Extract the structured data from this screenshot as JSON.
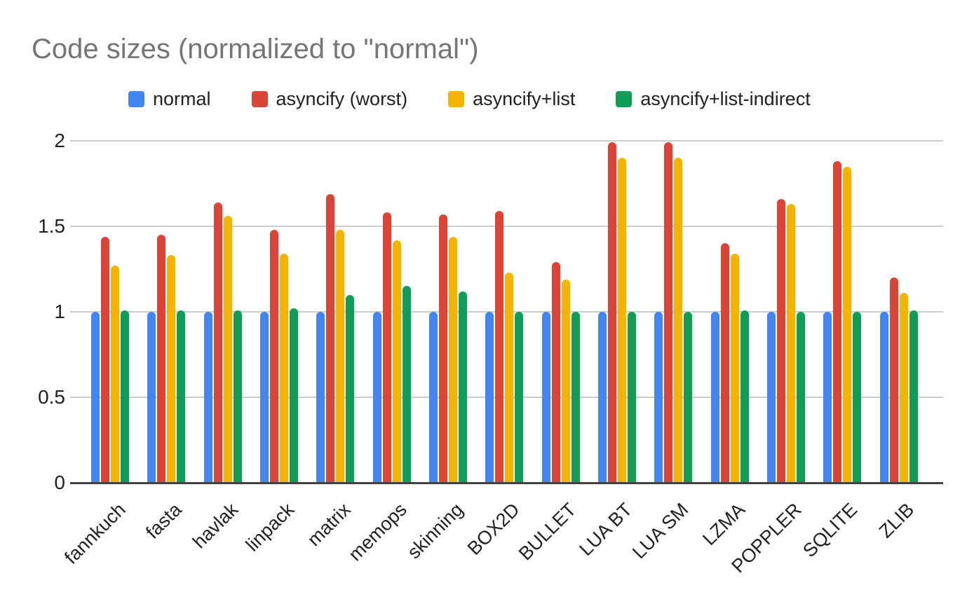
{
  "title": "Code sizes (normalized to \"normal\")",
  "colors": {
    "title_text": "#757575",
    "axis_text": "#212121",
    "gridline": "#cccccc",
    "baseline": "#424242",
    "series_blue": "#4285F4",
    "series_red": "#DB4437",
    "series_yellow": "#F4B400",
    "series_green": "#0F9D58"
  },
  "chart_data": {
    "type": "bar",
    "title": "Code sizes (normalized to \"normal\")",
    "xlabel": "",
    "ylabel": "",
    "ylim": [
      0,
      2
    ],
    "yticks": [
      0,
      0.5,
      1,
      1.5,
      2
    ],
    "grid": true,
    "legend_position": "top",
    "categories": [
      "fannkuch",
      "fasta",
      "havlak",
      "linpack",
      "matrix",
      "memops",
      "skinning",
      "BOX2D",
      "BULLET",
      "LUA BT",
      "LUA SM",
      "LZMA",
      "POPPLER",
      "SQLITE",
      "ZLIB"
    ],
    "series": [
      {
        "name": "normal",
        "color": "#4285F4",
        "values": [
          1.0,
          1.0,
          1.0,
          1.0,
          1.0,
          1.0,
          1.0,
          1.0,
          1.0,
          1.0,
          1.0,
          1.0,
          1.0,
          1.0,
          1.0
        ]
      },
      {
        "name": "asyncify (worst)",
        "color": "#DB4437",
        "values": [
          1.44,
          1.45,
          1.64,
          1.48,
          1.69,
          1.58,
          1.57,
          1.59,
          1.29,
          1.99,
          1.99,
          1.4,
          1.66,
          1.88,
          1.2
        ]
      },
      {
        "name": "asyncify+list",
        "color": "#F4B400",
        "values": [
          1.27,
          1.33,
          1.56,
          1.34,
          1.48,
          1.42,
          1.44,
          1.23,
          1.19,
          1.9,
          1.9,
          1.34,
          1.63,
          1.85,
          1.11
        ]
      },
      {
        "name": "asyncify+list-indirect",
        "color": "#0F9D58",
        "values": [
          1.01,
          1.01,
          1.01,
          1.02,
          1.1,
          1.15,
          1.12,
          1.0,
          1.0,
          1.0,
          1.0,
          1.01,
          1.0,
          1.0,
          1.01
        ]
      }
    ]
  }
}
